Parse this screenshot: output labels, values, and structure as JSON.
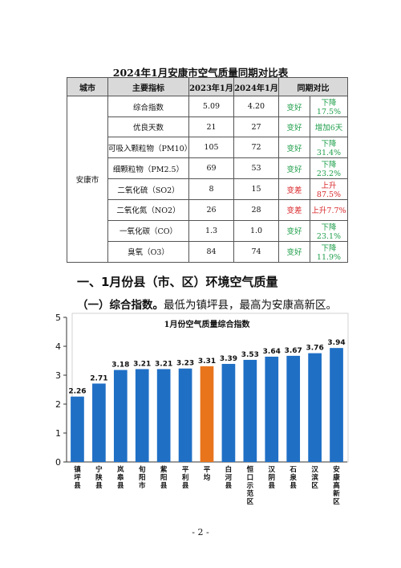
{
  "table": {
    "title": "2024年1月安康市空气质量同期对比表",
    "headers": [
      "城市",
      "主要指标",
      "2023年1月",
      "2024年1月",
      "同期对比"
    ],
    "city": "安康市",
    "rows": [
      {
        "indicator": "综合指数",
        "y2023": "5.09",
        "y2024": "4.20",
        "status": "变好",
        "change": "下降17.5%",
        "trend": "good"
      },
      {
        "indicator": "优良天数",
        "y2023": "21",
        "y2024": "27",
        "status": "变好",
        "change": "增加6天",
        "trend": "good"
      },
      {
        "indicator": "可吸入颗粒物（PM10）",
        "y2023": "105",
        "y2024": "72",
        "status": "变好",
        "change": "下降31.4%",
        "trend": "good"
      },
      {
        "indicator": "细颗粒物（PM2.5）",
        "y2023": "69",
        "y2024": "53",
        "status": "变好",
        "change": "下降23.2%",
        "trend": "good"
      },
      {
        "indicator": "二氧化硫（SO2）",
        "y2023": "8",
        "y2024": "15",
        "status": "变差",
        "change": "上升87.5%",
        "trend": "bad"
      },
      {
        "indicator": "二氧化氮（NO2）",
        "y2023": "26",
        "y2024": "28",
        "status": "变差",
        "change": "上升7.7%",
        "trend": "bad"
      },
      {
        "indicator": "一氧化碳（CO）",
        "y2023": "1.3",
        "y2024": "1.0",
        "status": "变好",
        "change": "下降23.1%",
        "trend": "good"
      },
      {
        "indicator": "臭氧（O3）",
        "y2023": "84",
        "y2024": "74",
        "status": "变好",
        "change": "下降11.9%",
        "trend": "good"
      }
    ]
  },
  "section_heading": "一、1月份县（市、区）环境空气质量",
  "paragraph": {
    "lead": "（一）综合指数。",
    "text": "最低为镇坪县，最高为安康高新区。"
  },
  "chart_data": {
    "type": "bar",
    "title": "1月份空气质量综合指数",
    "categories": [
      "镇坪县",
      "宁陕县",
      "岚皋县",
      "旬阳市",
      "紫阳县",
      "平利县",
      "平均",
      "白河县",
      "恒口示范区",
      "汉阴县",
      "石泉县",
      "汉滨区",
      "安康高新区"
    ],
    "values": [
      2.26,
      2.71,
      3.18,
      3.21,
      3.21,
      3.23,
      3.31,
      3.39,
      3.53,
      3.64,
      3.67,
      3.76,
      3.94
    ],
    "highlight_category": "平均",
    "ylim": [
      0,
      5
    ],
    "yticks": [
      0,
      1,
      2,
      3,
      4,
      5
    ],
    "colors": {
      "bar": "#1f6fc5",
      "highlight": "#e8741c"
    }
  },
  "footer": {
    "page": "- 2 -"
  }
}
